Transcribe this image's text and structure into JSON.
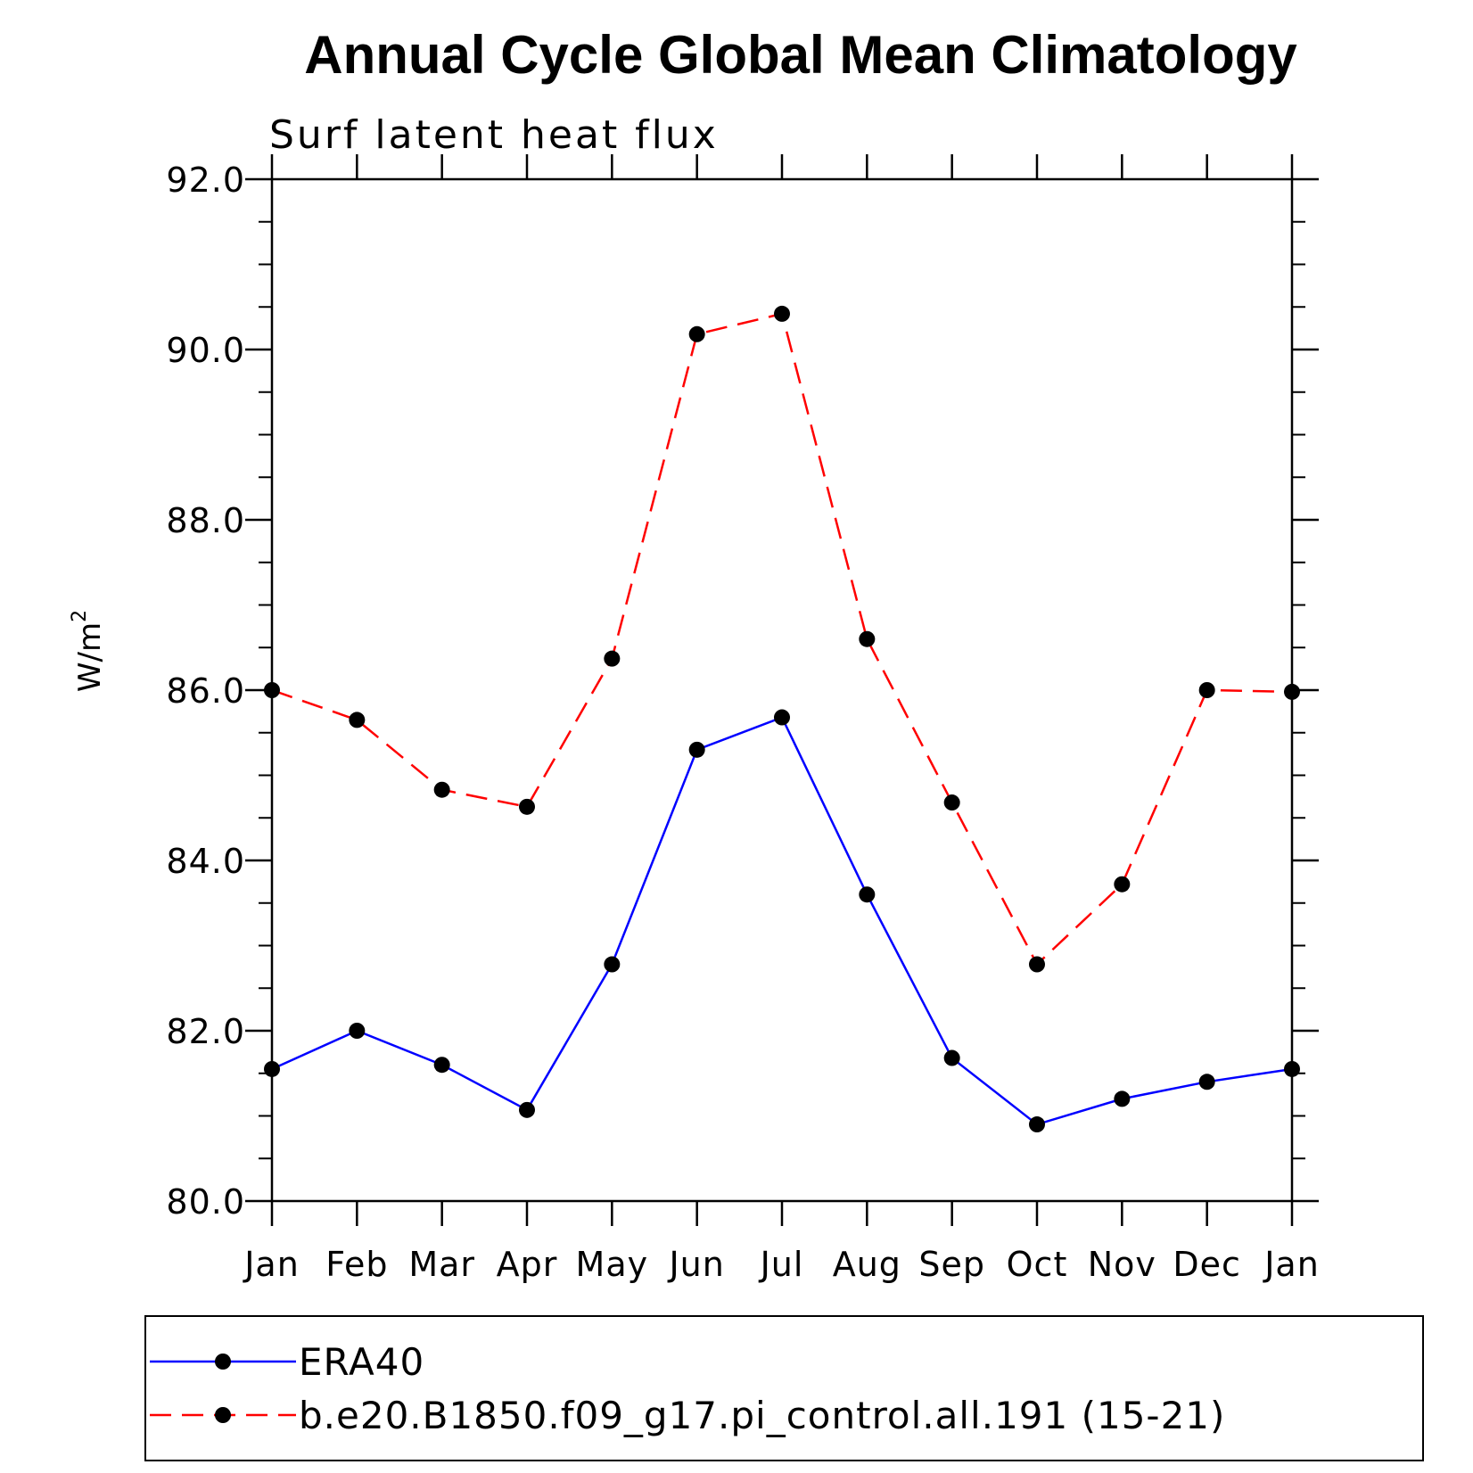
{
  "chart_data": {
    "type": "line",
    "title": "Annual Cycle Global Mean Climatology",
    "subtitle": "Surf latent heat flux",
    "ylabel": "W/m",
    "ylabel_sup": "2",
    "xlabel": "",
    "categories": [
      "Jan",
      "Feb",
      "Mar",
      "Apr",
      "May",
      "Jun",
      "Jul",
      "Aug",
      "Sep",
      "Oct",
      "Nov",
      "Dec",
      "Jan"
    ],
    "ylim": [
      80.0,
      92.0
    ],
    "yticks": [
      "80.0",
      "82.0",
      "84.0",
      "86.0",
      "88.0",
      "90.0",
      "92.0"
    ],
    "grid": false,
    "legend_position": "bottom",
    "series": [
      {
        "name": "ERA40",
        "color": "#0000ff",
        "dash": "solid",
        "marker": "filled-circle",
        "values": [
          81.55,
          82.0,
          81.6,
          81.07,
          82.78,
          85.3,
          85.68,
          83.6,
          81.68,
          80.9,
          81.2,
          81.4,
          81.55
        ]
      },
      {
        "name": "b.e20.B1850.f09_g17.pi_control.all.191 (15-21)",
        "color": "#ff0000",
        "dash": "dashed",
        "marker": "filled-circle",
        "values": [
          86.0,
          85.65,
          84.83,
          84.63,
          86.37,
          90.18,
          90.42,
          86.6,
          84.68,
          82.78,
          83.72,
          86.0,
          85.98
        ]
      }
    ]
  }
}
